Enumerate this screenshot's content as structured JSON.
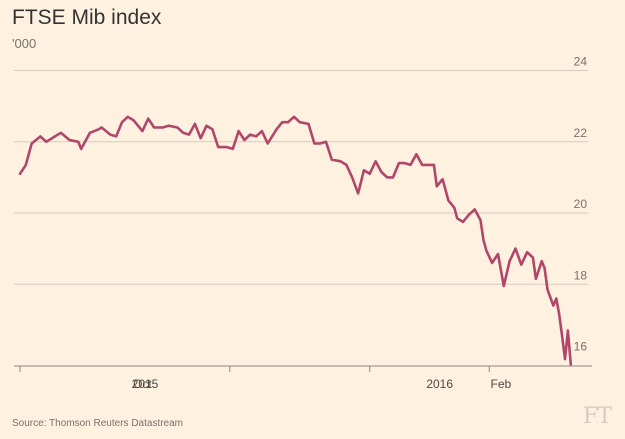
{
  "page": {
    "title": "FTSE Mib index",
    "unit": "'000",
    "source": "Source: Thomson Reuters Datastream",
    "logo": "FT"
  },
  "colors": {
    "background": "#FFF1E0",
    "line": "#B0476B",
    "grid": "#D6CCC0",
    "axis": "#8C8880"
  },
  "chart_data": {
    "type": "line",
    "title": "FTSE Mib index",
    "ylabel": "'000",
    "xlabel": "",
    "ylim": [
      15.8,
      24.3
    ],
    "yticks": [
      16,
      18,
      20,
      22,
      24
    ],
    "xlim": [
      "2015-08-20",
      "2016-02-23"
    ],
    "xtick_labels": [
      {
        "date": "2015-10-01",
        "label": "Oct"
      },
      {
        "date": "2016-01-01",
        "label": "2015"
      },
      {
        "date": "2016-01-11",
        "label": "2016"
      },
      {
        "date": "2016-02-01",
        "label": "Feb"
      }
    ],
    "series": [
      {
        "name": "",
        "points": [
          [
            "2015-08-20",
            21.1
          ],
          [
            "2015-08-22",
            21.35
          ],
          [
            "2015-08-24",
            21.95
          ],
          [
            "2015-08-27",
            22.15
          ],
          [
            "2015-08-29",
            22.0
          ],
          [
            "2015-09-01",
            22.15
          ],
          [
            "2015-09-03",
            22.25
          ],
          [
            "2015-09-06",
            22.05
          ],
          [
            "2015-09-09",
            22.0
          ],
          [
            "2015-09-10",
            21.8
          ],
          [
            "2015-09-13",
            22.25
          ],
          [
            "2015-09-16",
            22.35
          ],
          [
            "2015-09-17",
            22.4
          ],
          [
            "2015-09-20",
            22.2
          ],
          [
            "2015-09-22",
            22.15
          ],
          [
            "2015-09-24",
            22.55
          ],
          [
            "2015-09-26",
            22.7
          ],
          [
            "2015-09-28",
            22.6
          ],
          [
            "2015-10-01",
            22.3
          ],
          [
            "2015-10-03",
            22.65
          ],
          [
            "2015-10-05",
            22.4
          ],
          [
            "2015-10-08",
            22.4
          ],
          [
            "2015-10-10",
            22.45
          ],
          [
            "2015-10-13",
            22.4
          ],
          [
            "2015-10-15",
            22.25
          ],
          [
            "2015-10-17",
            22.2
          ],
          [
            "2015-10-19",
            22.5
          ],
          [
            "2015-10-21",
            22.1
          ],
          [
            "2015-10-23",
            22.45
          ],
          [
            "2015-10-25",
            22.35
          ],
          [
            "2015-10-27",
            21.85
          ],
          [
            "2015-10-30",
            21.85
          ],
          [
            "2015-11-01",
            21.8
          ],
          [
            "2015-11-03",
            22.3
          ],
          [
            "2015-11-05",
            22.05
          ],
          [
            "2015-11-07",
            22.2
          ],
          [
            "2015-11-09",
            22.15
          ],
          [
            "2015-11-11",
            22.3
          ],
          [
            "2015-11-13",
            21.95
          ],
          [
            "2015-11-16",
            22.35
          ],
          [
            "2015-11-18",
            22.55
          ],
          [
            "2015-11-20",
            22.55
          ],
          [
            "2015-11-22",
            22.7
          ],
          [
            "2015-11-24",
            22.55
          ],
          [
            "2015-11-27",
            22.5
          ],
          [
            "2015-11-29",
            21.95
          ],
          [
            "2015-12-01",
            21.95
          ],
          [
            "2015-12-03",
            22.0
          ],
          [
            "2015-12-05",
            21.5
          ],
          [
            "2015-12-08",
            21.45
          ],
          [
            "2015-12-10",
            21.35
          ],
          [
            "2015-12-12",
            21.0
          ],
          [
            "2015-12-14",
            20.55
          ],
          [
            "2015-12-16",
            21.2
          ],
          [
            "2015-12-18",
            21.1
          ],
          [
            "2015-12-20",
            21.45
          ],
          [
            "2015-12-22",
            21.15
          ],
          [
            "2015-12-24",
            21.0
          ],
          [
            "2015-12-26",
            21.0
          ],
          [
            "2015-12-28",
            21.4
          ],
          [
            "2015-12-30",
            21.4
          ],
          [
            "2016-01-01",
            21.35
          ],
          [
            "2016-01-03",
            21.65
          ],
          [
            "2016-01-05",
            21.35
          ],
          [
            "2016-01-07",
            21.35
          ],
          [
            "2016-01-09",
            21.35
          ],
          [
            "2016-01-10",
            20.75
          ],
          [
            "2016-01-12",
            20.95
          ],
          [
            "2016-01-14",
            20.35
          ],
          [
            "2016-01-16",
            20.15
          ],
          [
            "2016-01-17",
            19.85
          ],
          [
            "2016-01-19",
            19.75
          ],
          [
            "2016-01-21",
            19.95
          ],
          [
            "2016-01-23",
            20.1
          ],
          [
            "2016-01-25",
            19.8
          ],
          [
            "2016-01-26",
            19.25
          ],
          [
            "2016-01-27",
            18.95
          ],
          [
            "2016-01-29",
            18.6
          ],
          [
            "2016-01-31",
            18.85
          ],
          [
            "2016-02-02",
            17.95
          ],
          [
            "2016-02-04",
            18.65
          ],
          [
            "2016-02-06",
            19.0
          ],
          [
            "2016-02-08",
            18.55
          ],
          [
            "2016-02-10",
            18.9
          ],
          [
            "2016-02-12",
            18.75
          ],
          [
            "2016-02-13",
            18.15
          ],
          [
            "2016-02-15",
            18.65
          ],
          [
            "2016-02-16",
            18.45
          ],
          [
            "2016-02-17",
            17.85
          ],
          [
            "2016-02-19",
            17.4
          ],
          [
            "2016-02-20",
            17.6
          ],
          [
            "2016-02-21",
            17.15
          ],
          [
            "2016-02-22",
            16.55
          ],
          [
            "2016-02-23",
            15.9
          ],
          [
            "2016-02-24",
            16.7
          ],
          [
            "2016-02-25",
            15.75
          ]
        ]
      }
    ],
    "grid": "horizontal",
    "legend": "none"
  }
}
